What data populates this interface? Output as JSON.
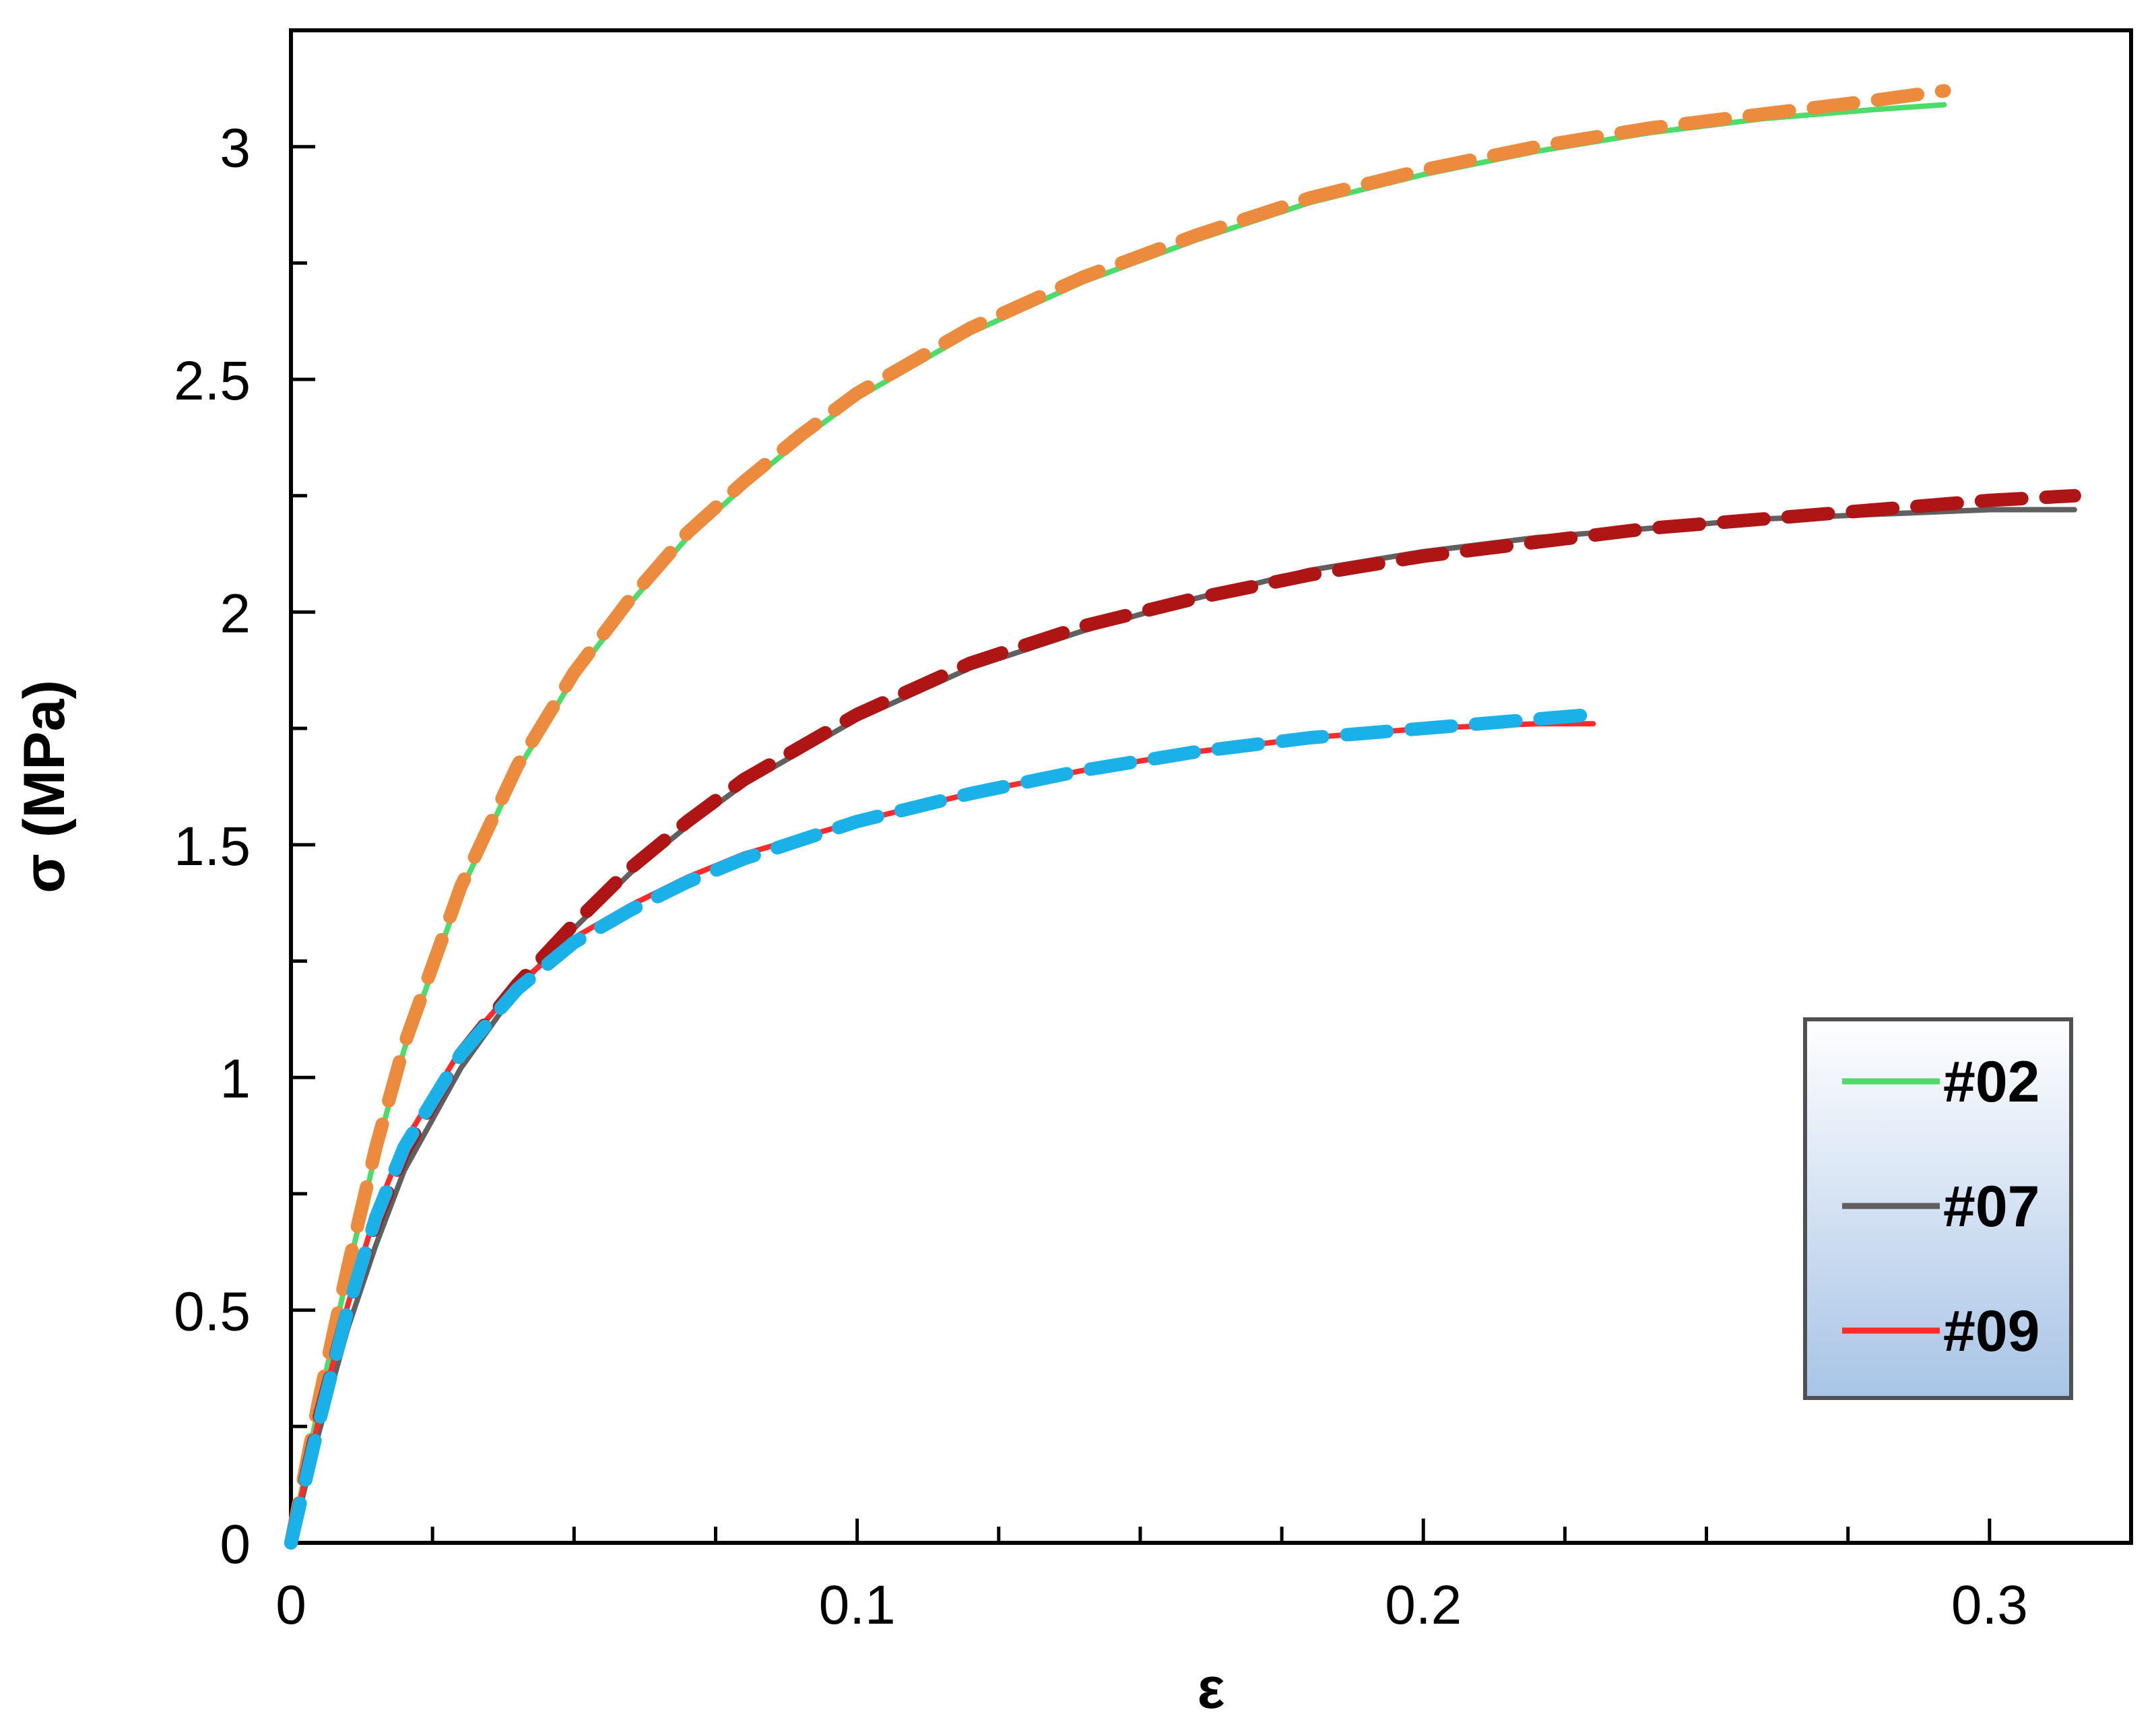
{
  "chart_data": {
    "type": "line",
    "title": "",
    "xlabel": "ε",
    "ylabel": "σ (MPa)",
    "xlim": [
      0,
      0.325
    ],
    "ylim": [
      0,
      3.25
    ],
    "x_ticks": [
      {
        "value": 0,
        "label": "0"
      },
      {
        "value": 0.1,
        "label": "0.1"
      },
      {
        "value": 0.2,
        "label": "0.2"
      },
      {
        "value": 0.3,
        "label": "0.3"
      }
    ],
    "x_minor_step": 0.025,
    "y_ticks": [
      {
        "value": 0,
        "label": "0"
      },
      {
        "value": 0.5,
        "label": "0.5"
      },
      {
        "value": 1,
        "label": "1"
      },
      {
        "value": 1.5,
        "label": "1.5"
      },
      {
        "value": 2,
        "label": "2"
      },
      {
        "value": 2.5,
        "label": "2.5"
      },
      {
        "value": 3,
        "label": "3"
      }
    ],
    "y_minor_step": 0.25,
    "grid": false,
    "legend_position": "bottom-right",
    "series": [
      {
        "name": "#02",
        "color": "#4ddb6a",
        "style": "solid",
        "in_legend": true,
        "points": [
          [
            0,
            0
          ],
          [
            0.005,
            0.3
          ],
          [
            0.01,
            0.58
          ],
          [
            0.015,
            0.84
          ],
          [
            0.02,
            1.06
          ],
          [
            0.03,
            1.4
          ],
          [
            0.04,
            1.66
          ],
          [
            0.05,
            1.86
          ],
          [
            0.06,
            2.02
          ],
          [
            0.07,
            2.16
          ],
          [
            0.08,
            2.27
          ],
          [
            0.09,
            2.37
          ],
          [
            0.1,
            2.46
          ],
          [
            0.12,
            2.6
          ],
          [
            0.14,
            2.71
          ],
          [
            0.16,
            2.8
          ],
          [
            0.18,
            2.88
          ],
          [
            0.2,
            2.94
          ],
          [
            0.22,
            2.99
          ],
          [
            0.24,
            3.03
          ],
          [
            0.26,
            3.06
          ],
          [
            0.28,
            3.08
          ],
          [
            0.292,
            3.09
          ]
        ]
      },
      {
        "name": "#02 fit",
        "color": "#ec8a3e",
        "style": "dashed",
        "in_legend": false,
        "points": [
          [
            0,
            0
          ],
          [
            0.005,
            0.31
          ],
          [
            0.01,
            0.59
          ],
          [
            0.015,
            0.85
          ],
          [
            0.02,
            1.07
          ],
          [
            0.03,
            1.41
          ],
          [
            0.04,
            1.67
          ],
          [
            0.05,
            1.87
          ],
          [
            0.06,
            2.03
          ],
          [
            0.07,
            2.17
          ],
          [
            0.08,
            2.28
          ],
          [
            0.09,
            2.38
          ],
          [
            0.1,
            2.47
          ],
          [
            0.12,
            2.61
          ],
          [
            0.14,
            2.72
          ],
          [
            0.16,
            2.81
          ],
          [
            0.18,
            2.89
          ],
          [
            0.2,
            2.95
          ],
          [
            0.22,
            3.0
          ],
          [
            0.24,
            3.04
          ],
          [
            0.26,
            3.07
          ],
          [
            0.28,
            3.1
          ],
          [
            0.292,
            3.12
          ]
        ]
      },
      {
        "name": "#07",
        "color": "#606060",
        "style": "solid",
        "in_legend": true,
        "points": [
          [
            0,
            0
          ],
          [
            0.005,
            0.24
          ],
          [
            0.01,
            0.46
          ],
          [
            0.015,
            0.64
          ],
          [
            0.02,
            0.8
          ],
          [
            0.03,
            1.02
          ],
          [
            0.04,
            1.19
          ],
          [
            0.05,
            1.32
          ],
          [
            0.06,
            1.44
          ],
          [
            0.07,
            1.54
          ],
          [
            0.08,
            1.63
          ],
          [
            0.1,
            1.77
          ],
          [
            0.12,
            1.88
          ],
          [
            0.14,
            1.96
          ],
          [
            0.16,
            2.03
          ],
          [
            0.18,
            2.09
          ],
          [
            0.2,
            2.13
          ],
          [
            0.22,
            2.16
          ],
          [
            0.24,
            2.18
          ],
          [
            0.26,
            2.2
          ],
          [
            0.28,
            2.21
          ],
          [
            0.3,
            2.22
          ],
          [
            0.315,
            2.22
          ]
        ]
      },
      {
        "name": "#07 fit",
        "color": "#b01515",
        "style": "dashed",
        "in_legend": false,
        "points": [
          [
            0,
            0
          ],
          [
            0.005,
            0.27
          ],
          [
            0.01,
            0.5
          ],
          [
            0.015,
            0.69
          ],
          [
            0.02,
            0.84
          ],
          [
            0.03,
            1.05
          ],
          [
            0.04,
            1.2
          ],
          [
            0.05,
            1.33
          ],
          [
            0.06,
            1.45
          ],
          [
            0.07,
            1.55
          ],
          [
            0.08,
            1.64
          ],
          [
            0.1,
            1.78
          ],
          [
            0.12,
            1.89
          ],
          [
            0.14,
            1.97
          ],
          [
            0.16,
            2.03
          ],
          [
            0.18,
            2.08
          ],
          [
            0.2,
            2.12
          ],
          [
            0.22,
            2.15
          ],
          [
            0.24,
            2.18
          ],
          [
            0.26,
            2.2
          ],
          [
            0.28,
            2.22
          ],
          [
            0.3,
            2.24
          ],
          [
            0.315,
            2.25
          ]
        ]
      },
      {
        "name": "#09",
        "color": "#ff2a2a",
        "style": "solid",
        "in_legend": true,
        "points": [
          [
            0,
            0
          ],
          [
            0.005,
            0.27
          ],
          [
            0.01,
            0.51
          ],
          [
            0.015,
            0.71
          ],
          [
            0.02,
            0.86
          ],
          [
            0.03,
            1.06
          ],
          [
            0.04,
            1.2
          ],
          [
            0.05,
            1.3
          ],
          [
            0.06,
            1.37
          ],
          [
            0.07,
            1.43
          ],
          [
            0.08,
            1.48
          ],
          [
            0.1,
            1.55
          ],
          [
            0.12,
            1.61
          ],
          [
            0.14,
            1.66
          ],
          [
            0.16,
            1.7
          ],
          [
            0.18,
            1.73
          ],
          [
            0.2,
            1.75
          ],
          [
            0.22,
            1.76
          ],
          [
            0.23,
            1.76
          ]
        ]
      },
      {
        "name": "#09 fit",
        "color": "#1ab0e8",
        "style": "dashed",
        "in_legend": false,
        "points": [
          [
            0,
            0
          ],
          [
            0.005,
            0.26
          ],
          [
            0.01,
            0.5
          ],
          [
            0.015,
            0.7
          ],
          [
            0.02,
            0.85
          ],
          [
            0.03,
            1.05
          ],
          [
            0.04,
            1.19
          ],
          [
            0.05,
            1.29
          ],
          [
            0.06,
            1.36
          ],
          [
            0.07,
            1.42
          ],
          [
            0.08,
            1.47
          ],
          [
            0.1,
            1.55
          ],
          [
            0.12,
            1.61
          ],
          [
            0.14,
            1.66
          ],
          [
            0.16,
            1.7
          ],
          [
            0.18,
            1.73
          ],
          [
            0.2,
            1.75
          ],
          [
            0.22,
            1.77
          ],
          [
            0.23,
            1.78
          ]
        ]
      }
    ]
  }
}
